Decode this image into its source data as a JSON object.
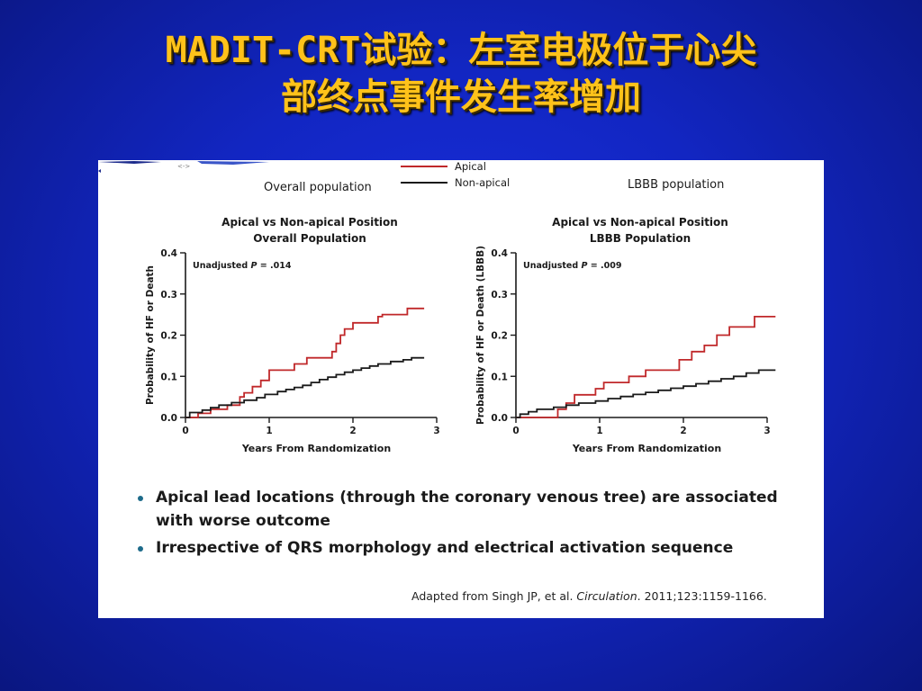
{
  "slide": {
    "title_line1_latin": "MADIT-CRT",
    "title_line1_cjk": "试验：左室电极位于心尖",
    "title_line2": "部终点事件发生率增加"
  },
  "legend": {
    "items": [
      {
        "label": "Apical",
        "color": "#c0282a"
      },
      {
        "label": "Non-apical",
        "color": "#1a1a1a"
      }
    ]
  },
  "bullets": [
    "Apical lead locations (through the coronary venous tree) are associated with worse outcome",
    "Irrespective of QRS morphology and electrical activation sequence"
  ],
  "citation": {
    "prefix": "Adapted from Singh JP,  et al. ",
    "journal": "Circulation",
    "suffix": ". 2011;123:1159-1166."
  },
  "chart_data": [
    {
      "type": "line",
      "heading": "Overall population",
      "title": "Apical vs Non-apical Position",
      "subtitle": "Overall Population",
      "xlabel": "Years From Randomization",
      "ylabel": "Probability of HF or Death",
      "annotation": {
        "prefix": "Unadjusted ",
        "p": "P",
        "suffix": " = .014"
      },
      "xlim": [
        0,
        3
      ],
      "ylim": [
        0,
        0.4
      ],
      "xticks": [
        "0",
        "1",
        "2",
        "3"
      ],
      "yticks": [
        "0.0",
        "0.1",
        "0.2",
        "0.3",
        "0.4"
      ],
      "series": [
        {
          "name": "Apical",
          "color": "#c0282a",
          "x": [
            0,
            0.15,
            0.15,
            0.3,
            0.3,
            0.5,
            0.5,
            0.65,
            0.65,
            0.7,
            0.7,
            0.8,
            0.8,
            0.9,
            0.9,
            1.0,
            1.0,
            1.3,
            1.3,
            1.45,
            1.45,
            1.75,
            1.75,
            1.8,
            1.8,
            1.85,
            1.85,
            1.9,
            1.9,
            2.0,
            2.0,
            2.3,
            2.3,
            2.35,
            2.35,
            2.65,
            2.65,
            2.85
          ],
          "y": [
            0,
            0,
            0.01,
            0.01,
            0.02,
            0.02,
            0.03,
            0.03,
            0.05,
            0.05,
            0.06,
            0.06,
            0.075,
            0.075,
            0.09,
            0.09,
            0.115,
            0.115,
            0.13,
            0.13,
            0.145,
            0.145,
            0.16,
            0.16,
            0.18,
            0.18,
            0.2,
            0.2,
            0.215,
            0.215,
            0.23,
            0.23,
            0.245,
            0.245,
            0.25,
            0.25,
            0.265,
            0.265
          ]
        },
        {
          "name": "Non-apical",
          "color": "#1a1a1a",
          "x": [
            0,
            0.05,
            0.05,
            0.2,
            0.2,
            0.3,
            0.3,
            0.4,
            0.4,
            0.55,
            0.55,
            0.7,
            0.7,
            0.85,
            0.85,
            0.95,
            0.95,
            1.1,
            1.1,
            1.2,
            1.2,
            1.3,
            1.3,
            1.4,
            1.4,
            1.5,
            1.5,
            1.6,
            1.6,
            1.7,
            1.7,
            1.8,
            1.8,
            1.9,
            1.9,
            2.0,
            2.0,
            2.1,
            2.1,
            2.2,
            2.2,
            2.3,
            2.3,
            2.45,
            2.45,
            2.6,
            2.6,
            2.7,
            2.7,
            2.85
          ],
          "y": [
            0,
            0,
            0.012,
            0.012,
            0.018,
            0.018,
            0.024,
            0.024,
            0.03,
            0.03,
            0.036,
            0.036,
            0.042,
            0.042,
            0.048,
            0.048,
            0.056,
            0.056,
            0.063,
            0.063,
            0.068,
            0.068,
            0.073,
            0.073,
            0.078,
            0.078,
            0.085,
            0.085,
            0.092,
            0.092,
            0.098,
            0.098,
            0.104,
            0.104,
            0.11,
            0.11,
            0.115,
            0.115,
            0.12,
            0.12,
            0.125,
            0.125,
            0.13,
            0.13,
            0.136,
            0.136,
            0.14,
            0.14,
            0.145,
            0.145
          ]
        }
      ]
    },
    {
      "type": "line",
      "heading": "LBBB population",
      "title": "Apical vs Non-apical Position",
      "subtitle": "LBBB Population",
      "xlabel": "Years From Randomization",
      "ylabel": "Probability of HF or Death (LBBB)",
      "annotation": {
        "prefix": "Unadjusted ",
        "p": "P",
        "suffix": " = .009"
      },
      "xlim": [
        0,
        3
      ],
      "ylim": [
        0,
        0.4
      ],
      "xticks": [
        "0",
        "1",
        "2",
        "3"
      ],
      "yticks": [
        "0.0",
        "0.1",
        "0.2",
        "0.3",
        "0.4"
      ],
      "series": [
        {
          "name": "Apical",
          "color": "#c0282a",
          "x": [
            0,
            0.5,
            0.5,
            0.6,
            0.6,
            0.7,
            0.7,
            0.95,
            0.95,
            1.05,
            1.05,
            1.35,
            1.35,
            1.55,
            1.55,
            1.95,
            1.95,
            2.1,
            2.1,
            2.25,
            2.25,
            2.4,
            2.4,
            2.55,
            2.55,
            2.85,
            2.85,
            3.1
          ],
          "y": [
            0,
            0,
            0.02,
            0.02,
            0.035,
            0.035,
            0.055,
            0.055,
            0.07,
            0.07,
            0.085,
            0.085,
            0.1,
            0.1,
            0.115,
            0.115,
            0.14,
            0.14,
            0.16,
            0.16,
            0.175,
            0.175,
            0.2,
            0.2,
            0.22,
            0.22,
            0.245,
            0.245
          ]
        },
        {
          "name": "Non-apical",
          "color": "#1a1a1a",
          "x": [
            0,
            0.05,
            0.05,
            0.15,
            0.15,
            0.25,
            0.25,
            0.45,
            0.45,
            0.6,
            0.6,
            0.75,
            0.75,
            0.95,
            0.95,
            1.1,
            1.1,
            1.25,
            1.25,
            1.4,
            1.4,
            1.55,
            1.55,
            1.7,
            1.7,
            1.85,
            1.85,
            2.0,
            2.0,
            2.15,
            2.15,
            2.3,
            2.3,
            2.45,
            2.45,
            2.6,
            2.6,
            2.75,
            2.75,
            2.9,
            2.9,
            3.1
          ],
          "y": [
            0,
            0,
            0.008,
            0.008,
            0.014,
            0.014,
            0.02,
            0.02,
            0.025,
            0.025,
            0.03,
            0.03,
            0.035,
            0.035,
            0.04,
            0.04,
            0.046,
            0.046,
            0.051,
            0.051,
            0.056,
            0.056,
            0.061,
            0.061,
            0.066,
            0.066,
            0.071,
            0.071,
            0.076,
            0.076,
            0.082,
            0.082,
            0.088,
            0.088,
            0.094,
            0.094,
            0.1,
            0.1,
            0.108,
            0.108,
            0.115,
            0.115
          ]
        }
      ]
    }
  ]
}
